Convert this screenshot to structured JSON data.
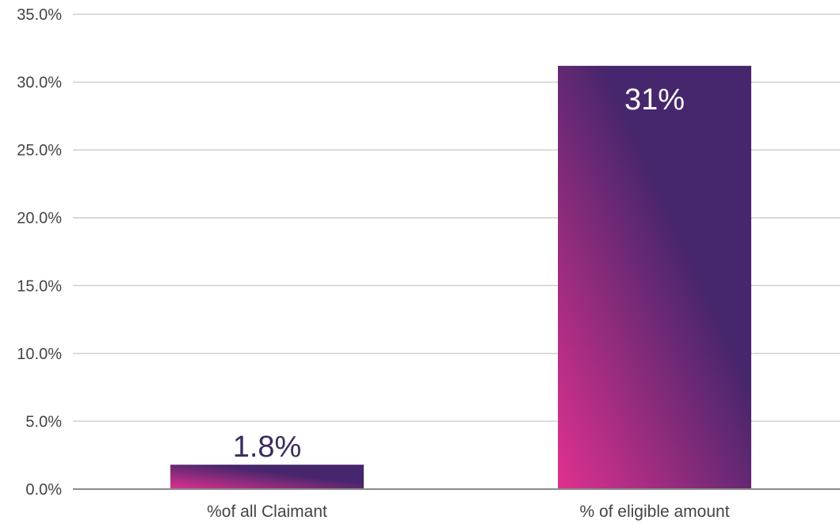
{
  "chart_data": {
    "type": "bar",
    "categories": [
      "%of all Claimant",
      "% of eligible amount"
    ],
    "values": [
      1.8,
      31.2
    ],
    "data_labels": [
      "1.8%",
      "31%"
    ],
    "ylim": [
      0,
      35
    ],
    "yticks": [
      0,
      5,
      10,
      15,
      20,
      25,
      30,
      35
    ],
    "ytick_labels": [
      "0.0%",
      "5.0%",
      "10.0%",
      "15.0%",
      "20.0%",
      "25.0%",
      "30.0%",
      "35.0%"
    ],
    "title": "",
    "xlabel": "",
    "ylabel": "",
    "grid": true,
    "legend": "none",
    "colors": {
      "bar_gradient_start": "#e0318f",
      "bar_gradient_end": "#46266c",
      "grid": "#cfcfcf",
      "axis": "#8a8a8a",
      "label_dark": "#3d2b5c",
      "label_light": "#ffffff",
      "tick_text": "#444444"
    }
  }
}
